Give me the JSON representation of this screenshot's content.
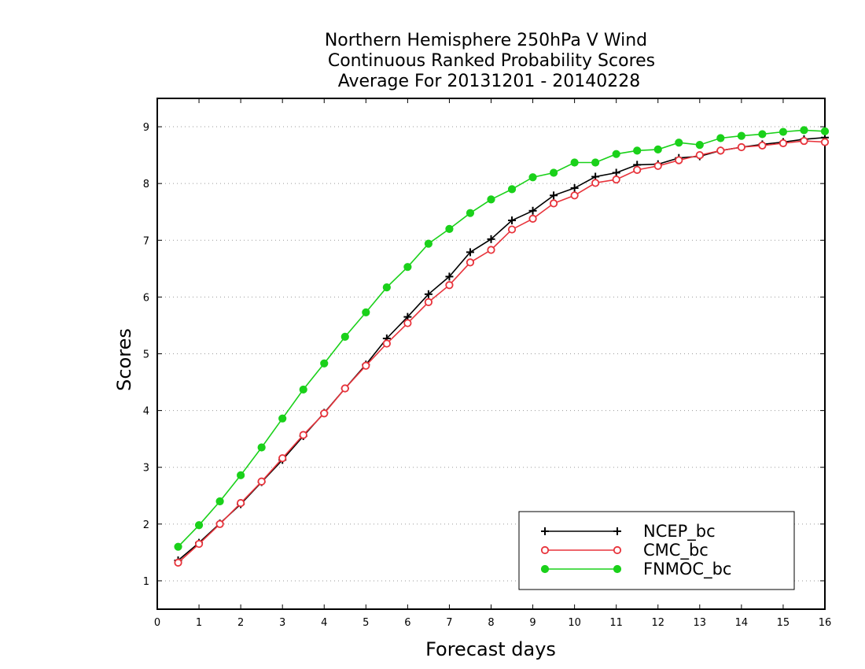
{
  "chart_data": {
    "type": "line",
    "title": [
      "Northern Hemisphere 250hPa V Wind",
      "Continuous Ranked Probability Scores",
      "Average For 20131201 - 20140228"
    ],
    "xlabel": "Forecast days",
    "ylabel": "Scores",
    "xlim": [
      0,
      16
    ],
    "ylim": [
      0.5,
      9.5
    ],
    "x_ticks": [
      0,
      1,
      2,
      3,
      4,
      5,
      6,
      7,
      8,
      9,
      10,
      11,
      12,
      13,
      14,
      15,
      16
    ],
    "y_ticks": [
      1,
      2,
      3,
      4,
      5,
      6,
      7,
      8,
      9
    ],
    "grid": "horizontal dotted",
    "legend_position": "bottom-right",
    "x": [
      0.5,
      1,
      1.5,
      2,
      2.5,
      3,
      3.5,
      4,
      4.5,
      5,
      5.5,
      6,
      6.5,
      7,
      7.5,
      8,
      8.5,
      9,
      9.5,
      10,
      10.5,
      11,
      11.5,
      12,
      12.5,
      13,
      13.5,
      14,
      14.5,
      15,
      15.5,
      16
    ],
    "series": [
      {
        "name": "NCEP_bc",
        "color": "#000000",
        "marker": "plus",
        "values": [
          1.36,
          1.67,
          2.01,
          2.35,
          2.74,
          3.13,
          3.55,
          3.96,
          4.39,
          4.81,
          5.27,
          5.65,
          6.05,
          6.36,
          6.79,
          7.02,
          7.35,
          7.52,
          7.79,
          7.92,
          8.12,
          8.19,
          8.33,
          8.34,
          8.45,
          8.48,
          8.58,
          8.64,
          8.69,
          8.73,
          8.78,
          8.81
        ]
      },
      {
        "name": "CMC_bc",
        "color": "#e8333b",
        "marker": "open-circle",
        "values": [
          1.32,
          1.65,
          2.0,
          2.37,
          2.75,
          3.16,
          3.57,
          3.95,
          4.39,
          4.79,
          5.18,
          5.54,
          5.91,
          6.21,
          6.61,
          6.83,
          7.19,
          7.38,
          7.65,
          7.79,
          8.01,
          8.07,
          8.24,
          8.31,
          8.41,
          8.5,
          8.58,
          8.64,
          8.67,
          8.71,
          8.75,
          8.73
        ]
      },
      {
        "name": "FNMOC_bc",
        "color": "#1ad11a",
        "marker": "filled-circle",
        "values": [
          1.6,
          1.98,
          2.4,
          2.86,
          3.35,
          3.86,
          4.37,
          4.83,
          5.3,
          5.73,
          6.17,
          6.53,
          6.94,
          7.2,
          7.48,
          7.72,
          7.9,
          8.11,
          8.19,
          8.37,
          8.37,
          8.52,
          8.58,
          8.6,
          8.72,
          8.68,
          8.8,
          8.84,
          8.87,
          8.91,
          8.94,
          8.92
        ]
      }
    ]
  }
}
